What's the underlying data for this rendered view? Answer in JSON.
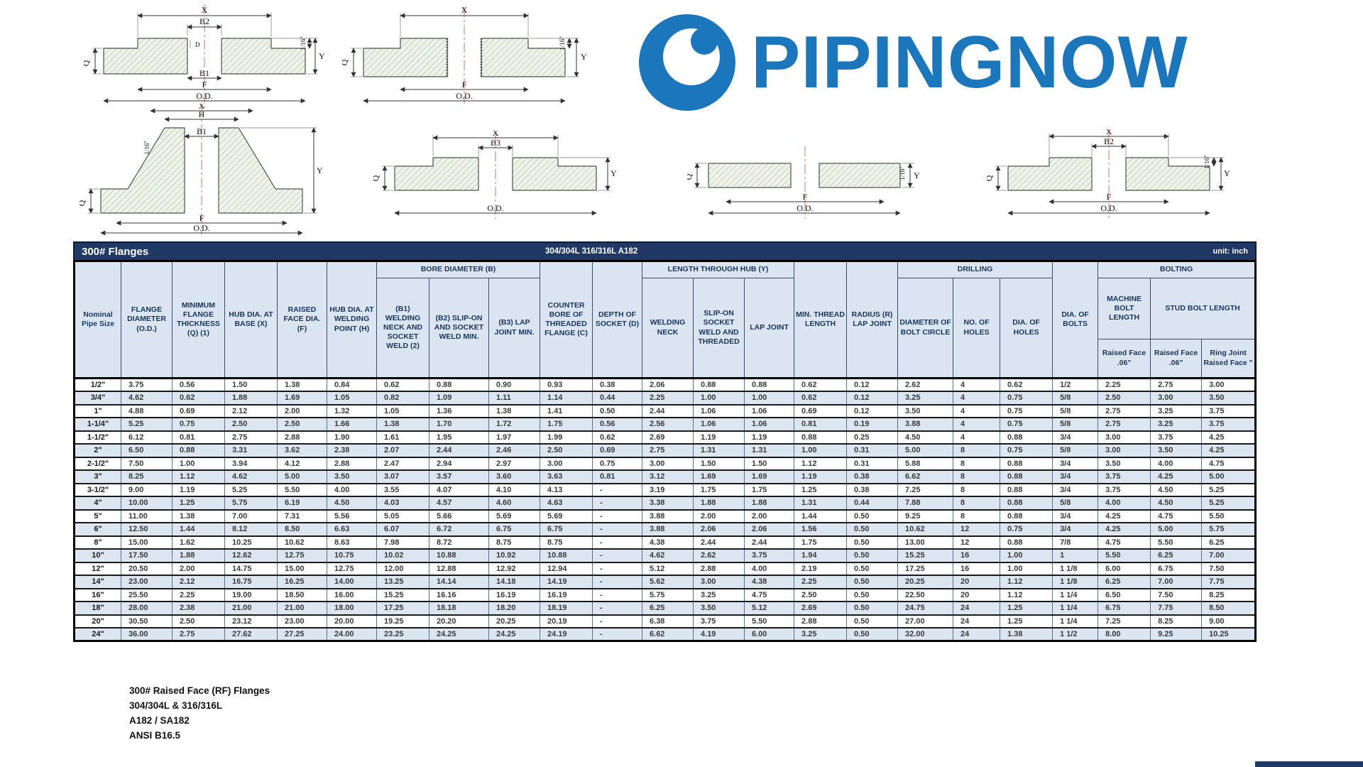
{
  "logo": {
    "text": "PIPINGNOW",
    "brand_blue": "#1b76bc"
  },
  "colors": {
    "header_navy": "#1f3864",
    "header_fill": "#dbe5f1",
    "row_stripe": "#dce6f1",
    "brand_blue": "#1b76bc"
  },
  "diagrams": [
    {
      "name": "socket-weld-flange",
      "labels": {
        "x": "X",
        "b2": "B2",
        "d": "D",
        "b1": "B1",
        "f": "F",
        "od": "O.D.",
        "q": "Q",
        "y": "Y",
        "rf": "1/16''"
      }
    },
    {
      "name": "threaded-flange",
      "labels": {
        "x": "X",
        "f": "F",
        "od": "O.D.",
        "q": "Q",
        "y": "Y",
        "rf": "1/16''"
      }
    },
    {
      "name": "welding-neck-flange",
      "labels": {
        "x": "X",
        "h": "H",
        "b1": "B1",
        "rf": "1/16''",
        "f": "F",
        "od": "O.D.",
        "q": "Q",
        "y": "Y"
      }
    },
    {
      "name": "lap-joint-flange",
      "labels": {
        "x": "X",
        "b3": "B3",
        "od": "O.D.",
        "q": "Q",
        "y": "Y"
      }
    },
    {
      "name": "plate-flange",
      "labels": {
        "q": "Q",
        "f": "F",
        "od": "O.D.",
        "y": "Y",
        "rf": "1/16''"
      }
    },
    {
      "name": "slip-on-flange",
      "labels": {
        "x": "X",
        "b2": "B2",
        "f": "F",
        "od": "O.D.",
        "q": "Q",
        "y": "Y",
        "rf": "1/16''"
      }
    }
  ],
  "table": {
    "title": "300# Flanges",
    "subtitle": "304/304L 316/316L A182",
    "unit": "unit: inch",
    "groups": {
      "bore": "BORE DIAMETER (B)",
      "length_hub": "LENGTH THROUGH HUB (Y)",
      "drilling": "DRILLING",
      "bolting": "BOLTING"
    },
    "headers": {
      "nominal": "Nominal Pipe Size",
      "flange_od": "FLANGE DIAMETER (O.D.)",
      "min_thickness": "MINIMUM FLANGE THICKNESS (Q) (1)",
      "hub_base": "HUB DIA. AT BASE (X)",
      "raised_face": "RAISED FACE DIA. (F)",
      "hub_weld": "HUB DIA. AT WELDING POINT (H)",
      "b1": "(B1) WELDING NECK AND SOCKET WELD (2)",
      "b2": "(B2) SLIP-ON AND SOCKET WELD MIN.",
      "b3": "(B3) LAP JOINT MIN.",
      "counter_bore": "COUNTER BORE OF THREADED FLANGE (C)",
      "socket_depth": "DEPTH OF SOCKET (D)",
      "welding_neck": "WELDING NECK",
      "slip_on": "SLIP-ON SOCKET WELD AND THREADED",
      "lap_joint": "LAP JOINT",
      "min_thread": "MIN. THREAD LENGTH",
      "radius": "RADIUS (R) LAP JOINT",
      "bolt_circle": "DIAMETER OF BOLT CIRCLE",
      "no_holes": "NO. OF HOLES",
      "dia_holes": "DIA. OF HOLES",
      "dia_bolts": "DIA. OF BOLTS",
      "machine_bolt": "MACHINE BOLT LENGTH",
      "stud_bolt": "STUD BOLT LENGTH",
      "machine_rf": "Raised Face .06\"",
      "stud_rf": "Raised Face .06\"",
      "stud_ring": "Ring Joint Raised Face \""
    },
    "rows": [
      [
        "1/2\"",
        "3.75",
        "0.56",
        "1.50",
        "1.38",
        "0.84",
        "0.62",
        "0.88",
        "0.90",
        "0.93",
        "0.38",
        "2.06",
        "0.88",
        "0.88",
        "0.62",
        "0.12",
        "2.62",
        "4",
        "0.62",
        "1/2",
        "2.25",
        "2.75",
        "3.00"
      ],
      [
        "3/4\"",
        "4.62",
        "0.62",
        "1.88",
        "1.69",
        "1.05",
        "0.82",
        "1.09",
        "1.11",
        "1.14",
        "0.44",
        "2.25",
        "1.00",
        "1.00",
        "0.62",
        "0.12",
        "3.25",
        "4",
        "0.75",
        "5/8",
        "2.50",
        "3.00",
        "3.50"
      ],
      [
        "1\"",
        "4.88",
        "0.69",
        "2.12",
        "2.00",
        "1.32",
        "1.05",
        "1.36",
        "1.38",
        "1.41",
        "0.50",
        "2.44",
        "1.06",
        "1.06",
        "0.69",
        "0.12",
        "3.50",
        "4",
        "0.75",
        "5/8",
        "2.75",
        "3.25",
        "3.75"
      ],
      [
        "1-1/4\"",
        "5.25",
        "0.75",
        "2.50",
        "2.50",
        "1.66",
        "1.38",
        "1.70",
        "1.72",
        "1.75",
        "0.56",
        "2.56",
        "1.06",
        "1.06",
        "0.81",
        "0.19",
        "3.88",
        "4",
        "0.75",
        "5/8",
        "2.75",
        "3.25",
        "3.75"
      ],
      [
        "1-1/2\"",
        "6.12",
        "0.81",
        "2.75",
        "2.88",
        "1.90",
        "1.61",
        "1.95",
        "1.97",
        "1.99",
        "0.62",
        "2.69",
        "1.19",
        "1.19",
        "0.88",
        "0.25",
        "4.50",
        "4",
        "0.88",
        "3/4",
        "3.00",
        "3.75",
        "4.25"
      ],
      [
        "2\"",
        "6.50",
        "0.88",
        "3.31",
        "3.62",
        "2.38",
        "2.07",
        "2.44",
        "2.46",
        "2.50",
        "0.69",
        "2.75",
        "1.31",
        "1.31",
        "1.00",
        "0.31",
        "5.00",
        "8",
        "0.75",
        "5/8",
        "3.00",
        "3.50",
        "4.25"
      ],
      [
        "2-1/2\"",
        "7.50",
        "1.00",
        "3.94",
        "4.12",
        "2.88",
        "2.47",
        "2.94",
        "2.97",
        "3.00",
        "0.75",
        "3.00",
        "1.50",
        "1.50",
        "1.12",
        "0.31",
        "5.88",
        "8",
        "0.88",
        "3/4",
        "3.50",
        "4.00",
        "4.75"
      ],
      [
        "3\"",
        "8.25",
        "1.12",
        "4.62",
        "5.00",
        "3.50",
        "3.07",
        "3.57",
        "3.60",
        "3.63",
        "0.81",
        "3.12",
        "1.69",
        "1.69",
        "1.19",
        "0.38",
        "6.62",
        "8",
        "0.88",
        "3/4",
        "3.75",
        "4.25",
        "5.00"
      ],
      [
        "3-1/2\"",
        "9.00",
        "1.19",
        "5.25",
        "5.50",
        "4.00",
        "3.55",
        "4.07",
        "4.10",
        "4.13",
        "-",
        "3.19",
        "1.75",
        "1.75",
        "1.25",
        "0.38",
        "7.25",
        "8",
        "0.88",
        "3/4",
        "3.75",
        "4.50",
        "5.25"
      ],
      [
        "4\"",
        "10.00",
        "1.25",
        "5.75",
        "6.19",
        "4.50",
        "4.03",
        "4.57",
        "4.60",
        "4.63",
        "-",
        "3.38",
        "1.88",
        "1.88",
        "1.31",
        "0.44",
        "7.88",
        "8",
        "0.88",
        "5/8",
        "4.00",
        "4.50",
        "5.25"
      ],
      [
        "5\"",
        "11.00",
        "1.38",
        "7.00",
        "7.31",
        "5.56",
        "5.05",
        "5.66",
        "5.69",
        "5.69",
        "-",
        "3.88",
        "2.00",
        "2.00",
        "1.44",
        "0.50",
        "9.25",
        "8",
        "0.88",
        "3/4",
        "4.25",
        "4.75",
        "5.50"
      ],
      [
        "6\"",
        "12.50",
        "1.44",
        "8.12",
        "8.50",
        "6.63",
        "6.07",
        "6.72",
        "6.75",
        "6.75",
        "-",
        "3.88",
        "2.06",
        "2.06",
        "1.56",
        "0.50",
        "10.62",
        "12",
        "0.75",
        "3/4",
        "4.25",
        "5.00",
        "5.75"
      ],
      [
        "8\"",
        "15.00",
        "1.62",
        "10.25",
        "10.62",
        "8.63",
        "7.98",
        "8.72",
        "8.75",
        "8.75",
        "-",
        "4.38",
        "2.44",
        "2.44",
        "1.75",
        "0.50",
        "13.00",
        "12",
        "0.88",
        "7/8",
        "4.75",
        "5.50",
        "6.25"
      ],
      [
        "10\"",
        "17.50",
        "1.88",
        "12.62",
        "12.75",
        "10.75",
        "10.02",
        "10.88",
        "10.92",
        "10.88",
        "-",
        "4.62",
        "2.62",
        "3.75",
        "1.94",
        "0.50",
        "15.25",
        "16",
        "1.00",
        "1",
        "5.50",
        "6.25",
        "7.00"
      ],
      [
        "12\"",
        "20.50",
        "2.00",
        "14.75",
        "15.00",
        "12.75",
        "12.00",
        "12.88",
        "12.92",
        "12.94",
        "-",
        "5.12",
        "2.88",
        "4.00",
        "2.19",
        "0.50",
        "17.25",
        "16",
        "1.00",
        "1 1/8",
        "6.00",
        "6.75",
        "7.50"
      ],
      [
        "14\"",
        "23.00",
        "2.12",
        "16.75",
        "16.25",
        "14.00",
        "13.25",
        "14.14",
        "14.18",
        "14.19",
        "-",
        "5.62",
        "3.00",
        "4.38",
        "2.25",
        "0.50",
        "20.25",
        "20",
        "1.12",
        "1 1/8",
        "6.25",
        "7.00",
        "7.75"
      ],
      [
        "16\"",
        "25.50",
        "2.25",
        "19.00",
        "18.50",
        "16.00",
        "15.25",
        "16.16",
        "16.19",
        "16.19",
        "-",
        "5.75",
        "3.25",
        "4.75",
        "2.50",
        "0.50",
        "22.50",
        "20",
        "1.12",
        "1 1/4",
        "6.50",
        "7.50",
        "8.25"
      ],
      [
        "18\"",
        "28.00",
        "2.38",
        "21.00",
        "21.00",
        "18.00",
        "17.25",
        "18.18",
        "18.20",
        "18.19",
        "-",
        "6.25",
        "3.50",
        "5.12",
        "2.69",
        "0.50",
        "24.75",
        "24",
        "1.25",
        "1 1/4",
        "6.75",
        "7.75",
        "8.50"
      ],
      [
        "20\"",
        "30.50",
        "2.50",
        "23.12",
        "23.00",
        "20.00",
        "19.25",
        "20.20",
        "20.25",
        "20.19",
        "-",
        "6.38",
        "3.75",
        "5.50",
        "2.88",
        "0.50",
        "27.00",
        "24",
        "1.25",
        "1 1/4",
        "7.25",
        "8.25",
        "9.00"
      ],
      [
        "24\"",
        "36.00",
        "2.75",
        "27.62",
        "27.25",
        "24.00",
        "23.25",
        "24.25",
        "24.25",
        "24.19",
        "-",
        "6.62",
        "4.19",
        "6.00",
        "3.25",
        "0.50",
        "32.00",
        "24",
        "1.38",
        "1 1/2",
        "8.00",
        "9.25",
        "10.25"
      ]
    ]
  },
  "footnotes": [
    "300# Raised Face (RF) Flanges",
    "304/304L & 316/316L",
    "A182 / SA182",
    "ANSI B16.5"
  ]
}
